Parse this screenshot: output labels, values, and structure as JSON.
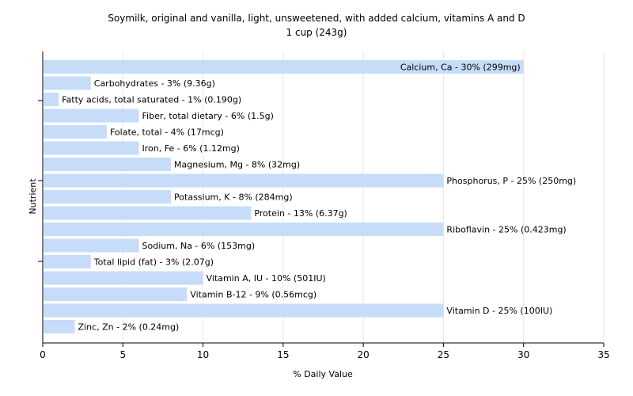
{
  "chart_data": {
    "type": "bar",
    "orientation": "horizontal",
    "title": [
      "Soymilk, original and vanilla, light, unsweetened, with added calcium, vitamins A and D",
      "1 cup (243g)"
    ],
    "xlabel": "% Daily Value",
    "ylabel": "Nutrient",
    "xlim": [
      0,
      35
    ],
    "xticks": [
      0,
      5,
      10,
      15,
      20,
      25,
      30,
      35
    ],
    "grid": true,
    "bar_color": "#c6dcf9",
    "categories": [
      "Calcium, Ca",
      "Carbohydrates",
      "Fatty acids, total saturated",
      "Fiber, total dietary",
      "Folate, total",
      "Iron, Fe",
      "Magnesium, Mg",
      "Phosphorus, P",
      "Potassium, K",
      "Protein",
      "Riboflavin",
      "Sodium, Na",
      "Total lipid (fat)",
      "Vitamin A, IU",
      "Vitamin B-12",
      "Vitamin D",
      "Zinc, Zn"
    ],
    "values": [
      30,
      3,
      1,
      6,
      4,
      6,
      8,
      25,
      8,
      13,
      25,
      6,
      3,
      10,
      9,
      25,
      2
    ],
    "labels": [
      "Calcium, Ca - 30% (299mg)",
      "Carbohydrates - 3% (9.36g)",
      "Fatty acids, total saturated - 1% (0.190g)",
      "Fiber, total dietary - 6% (1.5g)",
      "Folate, total - 4% (17mcg)",
      "Iron, Fe - 6% (1.12mg)",
      "Magnesium, Mg - 8% (32mg)",
      "Phosphorus, P - 25% (250mg)",
      "Potassium, K - 8% (284mg)",
      "Protein - 13% (6.37g)",
      "Riboflavin - 25% (0.423mg)",
      "Sodium, Na - 6% (153mg)",
      "Total lipid (fat) - 3% (2.07g)",
      "Vitamin A, IU - 10% (501IU)",
      "Vitamin B-12 - 9% (0.56mcg)",
      "Vitamin D - 25% (100IU)",
      "Zinc, Zn - 2% (0.24mg)"
    ]
  }
}
